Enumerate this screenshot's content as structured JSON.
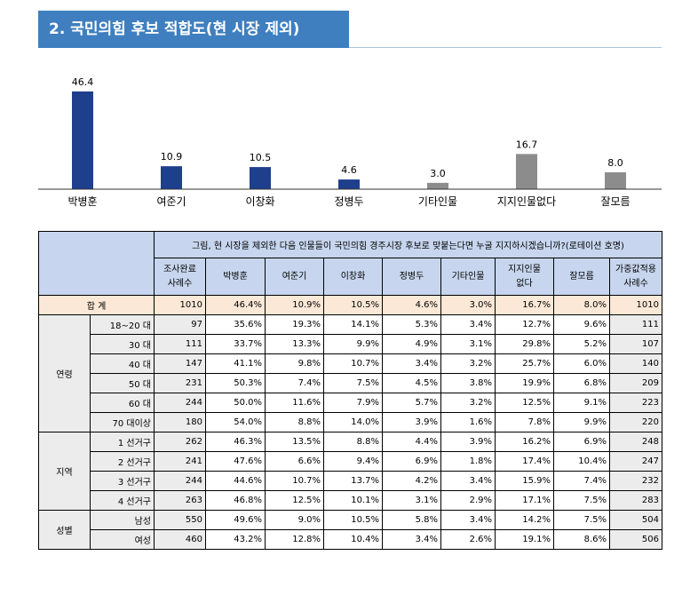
{
  "title": "2. 국민의힘 후보 적합도(현 시장 제외)",
  "chart_data": {
    "type": "bar",
    "categories": [
      "박병훈",
      "여준기",
      "이창화",
      "정병두",
      "기타인물",
      "지지인물없다",
      "잘모름"
    ],
    "values": [
      46.4,
      10.9,
      10.5,
      4.6,
      3.0,
      16.7,
      8.0
    ],
    "colors": [
      "#1e3f8c",
      "#1e3f8c",
      "#1e3f8c",
      "#1e3f8c",
      "#8c8c8c",
      "#8c8c8c",
      "#8c8c8c"
    ],
    "ylim": [
      0,
      50
    ]
  },
  "table": {
    "question": "그림, 현 시장을 제외한 다음 인물들이 국민의힘 경주시장 후보로 맞붙는다면 누굴 지지하시겠습니까?(로테이션 호명)",
    "headers": [
      "조사완료 사례수",
      "박병훈",
      "여준기",
      "이창화",
      "정병두",
      "기타인물",
      "지지인물 없다",
      "잘모름",
      "가중값적용 사례수"
    ],
    "total": {
      "label": "합 계",
      "values": [
        "1010",
        "46.4%",
        "10.9%",
        "10.5%",
        "4.6%",
        "3.0%",
        "16.7%",
        "8.0%",
        "1010"
      ]
    },
    "groups": [
      {
        "name": "연령",
        "rows": [
          {
            "label": "18~20 대",
            "values": [
              "97",
              "35.6%",
              "19.3%",
              "14.1%",
              "5.3%",
              "3.4%",
              "12.7%",
              "9.6%",
              "111"
            ]
          },
          {
            "label": "30 대",
            "values": [
              "111",
              "33.7%",
              "13.3%",
              "9.9%",
              "4.9%",
              "3.1%",
              "29.8%",
              "5.2%",
              "107"
            ]
          },
          {
            "label": "40 대",
            "values": [
              "147",
              "41.1%",
              "9.8%",
              "10.7%",
              "3.4%",
              "3.2%",
              "25.7%",
              "6.0%",
              "140"
            ]
          },
          {
            "label": "50 대",
            "values": [
              "231",
              "50.3%",
              "7.4%",
              "7.5%",
              "4.5%",
              "3.8%",
              "19.9%",
              "6.8%",
              "209"
            ]
          },
          {
            "label": "60 대",
            "values": [
              "244",
              "50.0%",
              "11.6%",
              "7.9%",
              "5.7%",
              "3.2%",
              "12.5%",
              "9.1%",
              "223"
            ]
          },
          {
            "label": "70 대이상",
            "values": [
              "180",
              "54.0%",
              "8.8%",
              "14.0%",
              "3.9%",
              "1.6%",
              "7.8%",
              "9.9%",
              "220"
            ]
          }
        ]
      },
      {
        "name": "지역",
        "rows": [
          {
            "label": "1 선거구",
            "values": [
              "262",
              "46.3%",
              "13.5%",
              "8.8%",
              "4.4%",
              "3.9%",
              "16.2%",
              "6.9%",
              "248"
            ]
          },
          {
            "label": "2 선거구",
            "values": [
              "241",
              "47.6%",
              "6.6%",
              "9.4%",
              "6.9%",
              "1.8%",
              "17.4%",
              "10.4%",
              "247"
            ]
          },
          {
            "label": "3 선거구",
            "values": [
              "244",
              "44.6%",
              "10.7%",
              "13.7%",
              "4.2%",
              "3.4%",
              "15.9%",
              "7.4%",
              "232"
            ]
          },
          {
            "label": "4 선거구",
            "values": [
              "263",
              "46.8%",
              "12.5%",
              "10.1%",
              "3.1%",
              "2.9%",
              "17.1%",
              "7.5%",
              "283"
            ]
          }
        ]
      },
      {
        "name": "성별",
        "rows": [
          {
            "label": "남성",
            "values": [
              "550",
              "49.6%",
              "9.0%",
              "10.5%",
              "5.8%",
              "3.4%",
              "14.2%",
              "7.5%",
              "504"
            ]
          },
          {
            "label": "여성",
            "values": [
              "460",
              "43.2%",
              "12.8%",
              "10.4%",
              "3.4%",
              "2.6%",
              "19.1%",
              "8.6%",
              "506"
            ]
          }
        ]
      }
    ]
  }
}
